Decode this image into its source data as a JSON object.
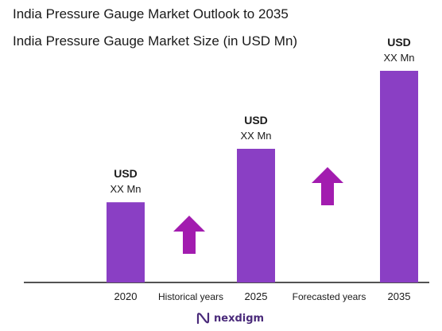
{
  "title": "India Pressure Gauge Market Outlook to 2035",
  "subtitle": "India Pressure Gauge Market Size (in USD Mn)",
  "brand": "nexdigm",
  "colors": {
    "bar": "#8a3fc4",
    "arrow": "#a21caf",
    "baseline": "#1a1a1a",
    "text": "#1a1a1a",
    "brand": "#4a2a7a"
  },
  "chart_data": {
    "type": "bar",
    "categories": [
      "2020",
      "2025",
      "2035"
    ],
    "relative_heights": [
      0.36,
      0.6,
      0.95
    ],
    "data_labels": [
      {
        "line1": "USD",
        "line2": "XX Mn"
      },
      {
        "line1": "USD",
        "line2": "XX Mn"
      },
      {
        "line1": "USD",
        "line2": "XX Mn"
      }
    ],
    "period_labels": [
      "Historical years",
      "Forecasted years"
    ],
    "trend_arrows": [
      "up",
      "up"
    ],
    "grid": false
  }
}
